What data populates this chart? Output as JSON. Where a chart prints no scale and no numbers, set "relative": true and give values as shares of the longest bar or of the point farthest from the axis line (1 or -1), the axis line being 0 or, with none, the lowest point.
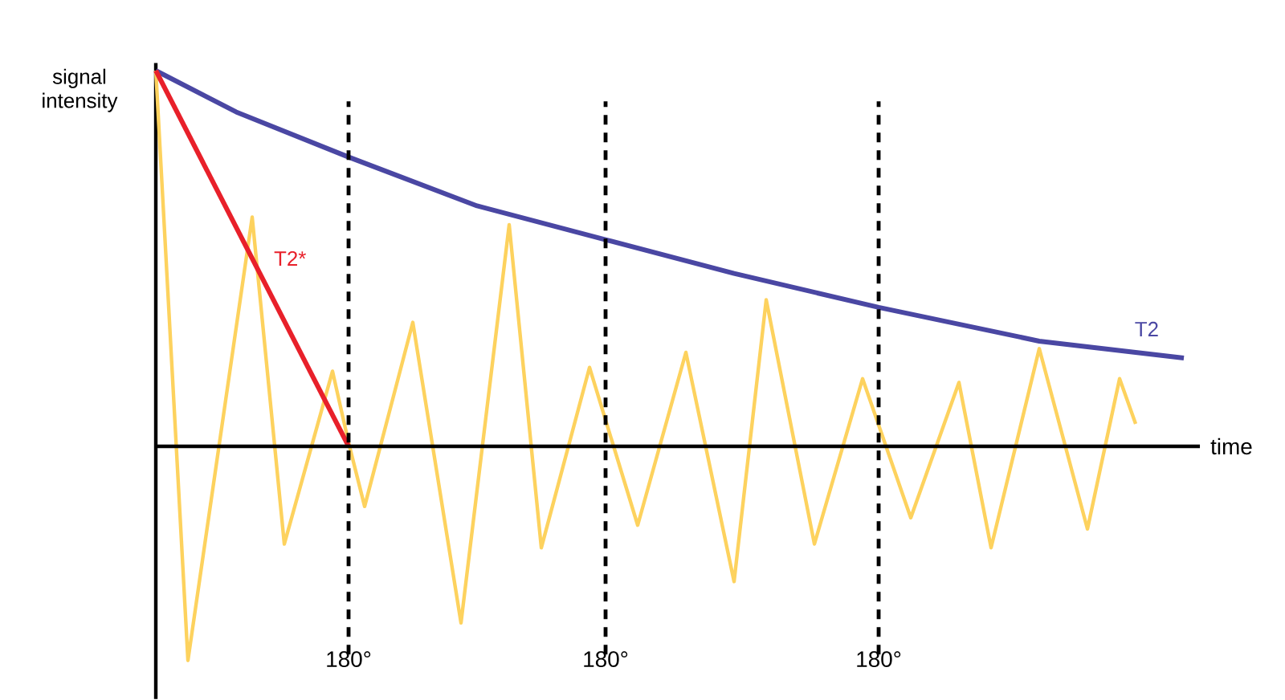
{
  "chart_data": {
    "type": "line",
    "relative": true,
    "xlabel": "time",
    "ylabel": "signal intensity",
    "marker": "none",
    "line_style": "solid",
    "grid": "x",
    "categories": [
      null,
      null,
      null,
      null,
      null,
      null,
      null,
      null,
      null,
      null,
      null,
      null,
      "180°",
      null,
      null,
      null,
      null,
      null,
      null,
      null,
      null,
      null,
      null,
      null,
      null,
      null,
      null,
      null,
      "180°",
      null,
      null,
      null,
      null,
      null,
      null,
      null,
      null,
      null,
      null,
      null,
      null,
      null,
      null,
      null,
      null,
      "180°",
      null,
      null,
      null,
      null,
      null,
      null,
      null,
      null,
      null,
      null,
      null,
      null,
      null,
      null,
      null,
      null,
      null,
      null,
      null
    ],
    "series": [
      {
        "values": [
          1,
          null,
          -0.57,
          null,
          null,
          null,
          0.61,
          null,
          -0.26,
          null,
          null,
          0.2,
          0.01,
          -0.16,
          null,
          null,
          0.33,
          null,
          null,
          -0.47,
          null,
          null,
          0.59,
          null,
          -0.27,
          null,
          null,
          0.21,
          null,
          null,
          -0.21,
          null,
          null,
          0.25,
          null,
          null,
          -0.36,
          null,
          0.39,
          null,
          null,
          -0.26,
          null,
          null,
          0.18,
          null,
          null,
          -0.19,
          null,
          null,
          0.17,
          null,
          -0.27,
          null,
          null,
          0.26,
          null,
          null,
          -0.22,
          null,
          0.18,
          0.06,
          null,
          null,
          null
        ],
        "color": "#fdd25e"
      },
      {
        "name": "T2",
        "values": [
          1,
          null,
          null,
          null,
          null,
          0.89,
          null,
          null,
          null,
          null,
          null,
          null,
          0.77,
          null,
          null,
          null,
          null,
          null,
          null,
          null,
          0.64,
          null,
          null,
          null,
          null,
          null,
          null,
          null,
          0.55,
          null,
          null,
          null,
          null,
          null,
          null,
          null,
          0.46,
          null,
          null,
          null,
          null,
          null,
          null,
          null,
          null,
          0.37,
          null,
          null,
          null,
          null,
          null,
          null,
          null,
          null,
          null,
          0.28,
          null,
          null,
          null,
          null,
          null,
          null,
          null,
          null,
          0.235
        ],
        "color": "#4a47a3"
      },
      {
        "name": "T2*",
        "values": [
          1,
          null,
          null,
          null,
          null,
          null,
          null,
          null,
          null,
          null,
          null,
          null,
          0,
          null,
          null,
          null,
          null,
          null,
          null,
          null,
          null,
          null,
          null,
          null,
          null,
          null,
          null,
          null,
          null,
          null,
          null,
          null,
          null,
          null,
          null,
          null,
          null,
          null,
          null,
          null,
          null,
          null,
          null,
          null,
          null,
          null,
          null,
          null,
          null,
          null,
          null,
          null,
          null,
          null,
          null,
          null,
          null,
          null,
          null,
          null,
          null,
          null,
          null,
          null,
          null
        ],
        "color": "#e8202a"
      }
    ]
  }
}
